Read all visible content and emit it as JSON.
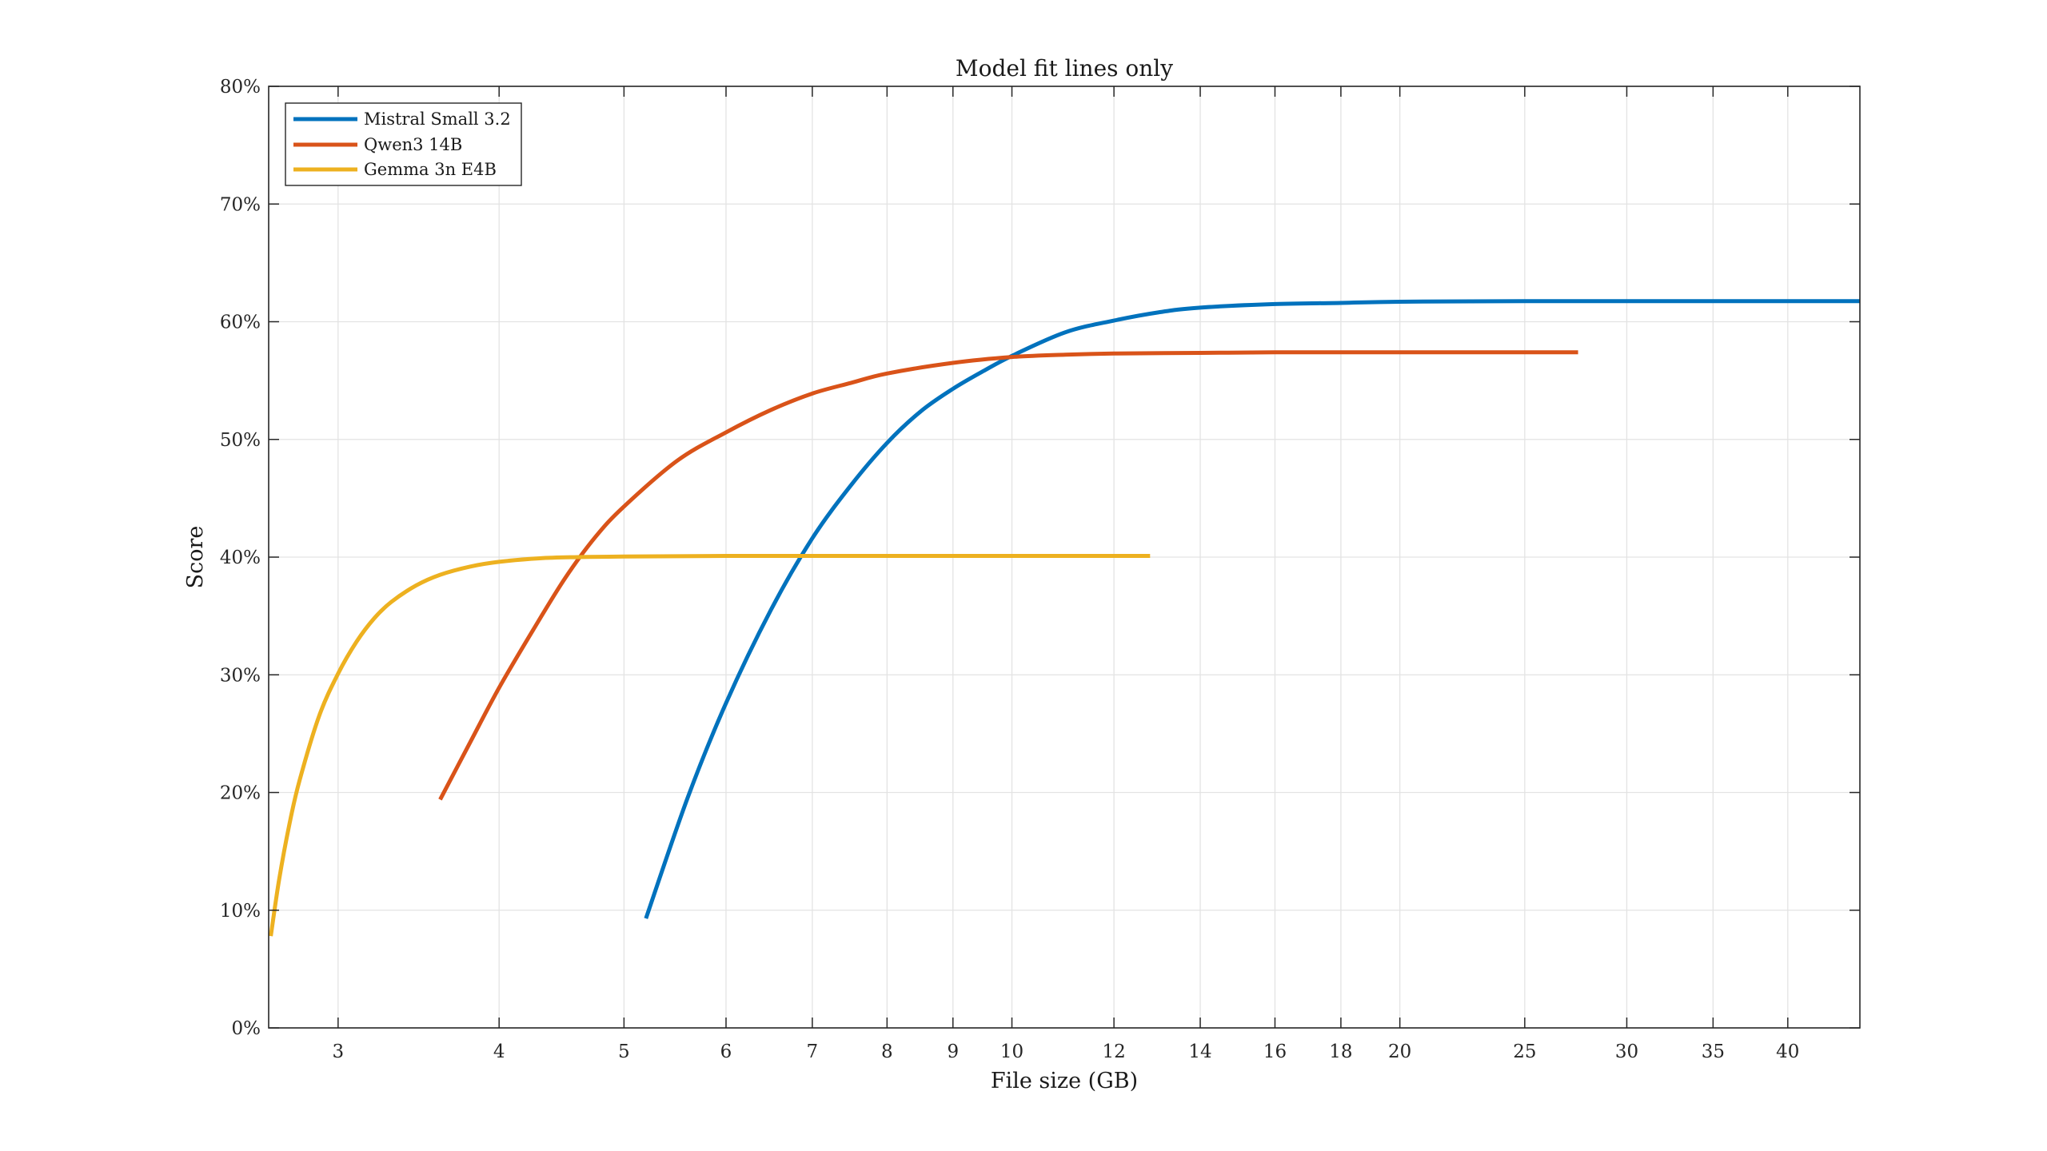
{
  "chart_data": {
    "type": "line",
    "title": "Model fit lines only",
    "xlabel": "File size (GB)",
    "ylabel": "Score",
    "x_scale": "log",
    "xlim": [
      2.65,
      45.5
    ],
    "ylim": [
      0,
      80
    ],
    "x_ticks": [
      3,
      4,
      5,
      6,
      7,
      8,
      9,
      10,
      12,
      14,
      16,
      18,
      20,
      25,
      30,
      35,
      40
    ],
    "y_ticks": [
      {
        "value": 0,
        "label": "0%"
      },
      {
        "value": 10,
        "label": "10%"
      },
      {
        "value": 20,
        "label": "20%"
      },
      {
        "value": 30,
        "label": "30%"
      },
      {
        "value": 40,
        "label": "40%"
      },
      {
        "value": 50,
        "label": "50%"
      },
      {
        "value": 60,
        "label": "60%"
      },
      {
        "value": 70,
        "label": "70%"
      },
      {
        "value": 80,
        "label": "80%"
      }
    ],
    "grid": true,
    "legend_position": "top-left",
    "series": [
      {
        "name": "Mistral Small 3.2",
        "color": "#0072BD",
        "points": [
          [
            5.2,
            9.3
          ],
          [
            5.6,
            19.5
          ],
          [
            6.0,
            27.6
          ],
          [
            6.5,
            35.5
          ],
          [
            7.0,
            41.6
          ],
          [
            7.5,
            46.1
          ],
          [
            8.0,
            49.7
          ],
          [
            8.5,
            52.4
          ],
          [
            9.0,
            54.3
          ],
          [
            9.5,
            55.8
          ],
          [
            10.0,
            57.1
          ],
          [
            11.0,
            59.1
          ],
          [
            12.0,
            60.1
          ],
          [
            13.0,
            60.8
          ],
          [
            14.0,
            61.2
          ],
          [
            16.0,
            61.5
          ],
          [
            18.0,
            61.6
          ],
          [
            20.0,
            61.7
          ],
          [
            25.0,
            61.75
          ],
          [
            30.0,
            61.75
          ],
          [
            35.0,
            61.75
          ],
          [
            40.0,
            61.75
          ],
          [
            45.5,
            61.75
          ]
        ]
      },
      {
        "name": "Qwen3 14B",
        "color": "#D95319",
        "points": [
          [
            3.6,
            19.4
          ],
          [
            3.8,
            24.3
          ],
          [
            4.0,
            28.9
          ],
          [
            4.25,
            33.8
          ],
          [
            4.5,
            38.2
          ],
          [
            4.75,
            41.7
          ],
          [
            5.0,
            44.3
          ],
          [
            5.5,
            48.2
          ],
          [
            6.0,
            50.6
          ],
          [
            6.5,
            52.5
          ],
          [
            7.0,
            53.9
          ],
          [
            7.5,
            54.8
          ],
          [
            8.0,
            55.6
          ],
          [
            9.0,
            56.5
          ],
          [
            10.0,
            57.0
          ],
          [
            11.0,
            57.2
          ],
          [
            12.0,
            57.3
          ],
          [
            14.0,
            57.35
          ],
          [
            16.0,
            57.4
          ],
          [
            20.0,
            57.4
          ],
          [
            25.0,
            57.4
          ],
          [
            27.5,
            57.4
          ]
        ]
      },
      {
        "name": "Gemma 3n E4B",
        "color": "#EDB120",
        "points": [
          [
            2.66,
            7.8
          ],
          [
            2.7,
            12.6
          ],
          [
            2.75,
            17.3
          ],
          [
            2.8,
            21.0
          ],
          [
            2.9,
            26.5
          ],
          [
            3.0,
            30.1
          ],
          [
            3.1,
            32.8
          ],
          [
            3.2,
            34.8
          ],
          [
            3.3,
            36.2
          ],
          [
            3.45,
            37.6
          ],
          [
            3.6,
            38.5
          ],
          [
            3.8,
            39.2
          ],
          [
            4.0,
            39.6
          ],
          [
            4.3,
            39.9
          ],
          [
            4.6,
            40.0
          ],
          [
            5.0,
            40.05
          ],
          [
            6.0,
            40.1
          ],
          [
            8.0,
            40.1
          ],
          [
            10.0,
            40.1
          ],
          [
            12.8,
            40.1
          ]
        ]
      }
    ]
  }
}
